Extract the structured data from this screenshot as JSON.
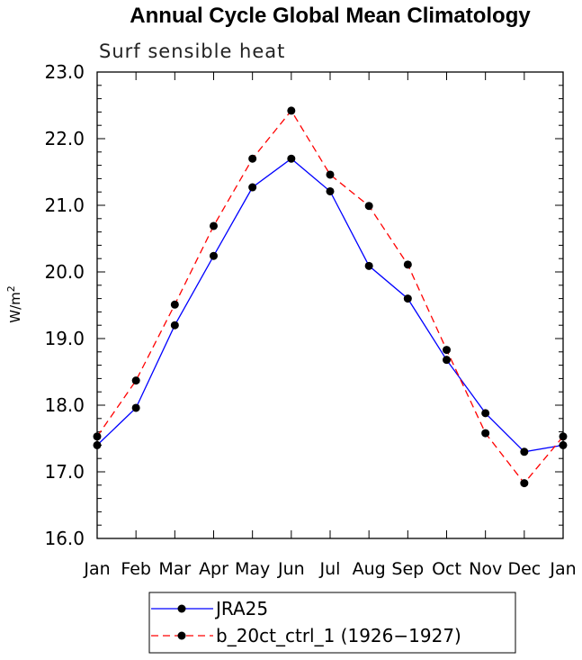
{
  "chart_data": {
    "type": "line",
    "title": "Annual Cycle Global Mean Climatology",
    "subtitle": "Surf sensible heat",
    "ylabel": "W/m",
    "ylabel_sup": "2",
    "xlabel": "",
    "categories": [
      "Jan",
      "Feb",
      "Mar",
      "Apr",
      "May",
      "Jun",
      "Jul",
      "Aug",
      "Sep",
      "Oct",
      "Nov",
      "Dec",
      "Jan"
    ],
    "ylim": [
      16.0,
      23.0
    ],
    "yticks": [
      "16.0",
      "17.0",
      "18.0",
      "19.0",
      "20.0",
      "21.0",
      "22.0",
      "23.0"
    ],
    "series": [
      {
        "name": "JRA25",
        "color": "#0000ff",
        "dash": "solid",
        "values": [
          17.4,
          17.96,
          19.2,
          20.24,
          21.27,
          21.7,
          21.21,
          20.09,
          19.6,
          18.68,
          17.88,
          17.3,
          17.4
        ]
      },
      {
        "name": "b_20ct_ctrl_1 (1926−1927)",
        "color": "#ff0000",
        "dash": "dashed",
        "values": [
          17.53,
          18.37,
          19.51,
          20.69,
          21.7,
          22.42,
          21.46,
          20.99,
          20.11,
          18.83,
          17.58,
          16.83,
          17.53
        ]
      }
    ],
    "grid": false,
    "legend_position": "bottom"
  }
}
